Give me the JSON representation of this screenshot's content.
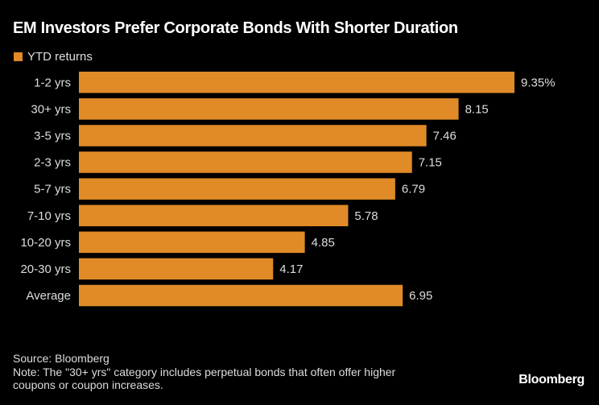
{
  "title": "EM Investors Prefer Corporate Bonds With Shorter Duration",
  "colors": {
    "bar": "#E08B27",
    "background": "#000000",
    "text": "#FFFFFF"
  },
  "chart_data": {
    "type": "bar",
    "orientation": "horizontal",
    "title": "EM Investors Prefer Corporate Bonds With Shorter Duration",
    "legend": {
      "position": "top-left",
      "entries": [
        "YTD returns"
      ]
    },
    "categories": [
      "1-2 yrs",
      "30+ yrs",
      "3-5 yrs",
      "2-3 yrs",
      "5-7 yrs",
      "7-10 yrs",
      "10-20 yrs",
      "20-30 yrs",
      "Average"
    ],
    "series": [
      {
        "name": "YTD returns",
        "values": [
          9.35,
          8.15,
          7.46,
          7.15,
          6.79,
          5.78,
          4.85,
          4.17,
          6.95
        ]
      }
    ],
    "data_labels": [
      "9.35%",
      "8.15",
      "7.46",
      "7.15",
      "6.79",
      "5.78",
      "4.85",
      "4.17",
      "6.95"
    ],
    "xlim": [
      0,
      9.35
    ],
    "grid": false
  },
  "footer": {
    "source": "Source: Bloomberg",
    "note_line1": "Note: The \"30+ yrs\" category includes perpetual bonds that often offer higher",
    "note_line2": "coupons or coupon increases."
  },
  "logo": "Bloomberg"
}
